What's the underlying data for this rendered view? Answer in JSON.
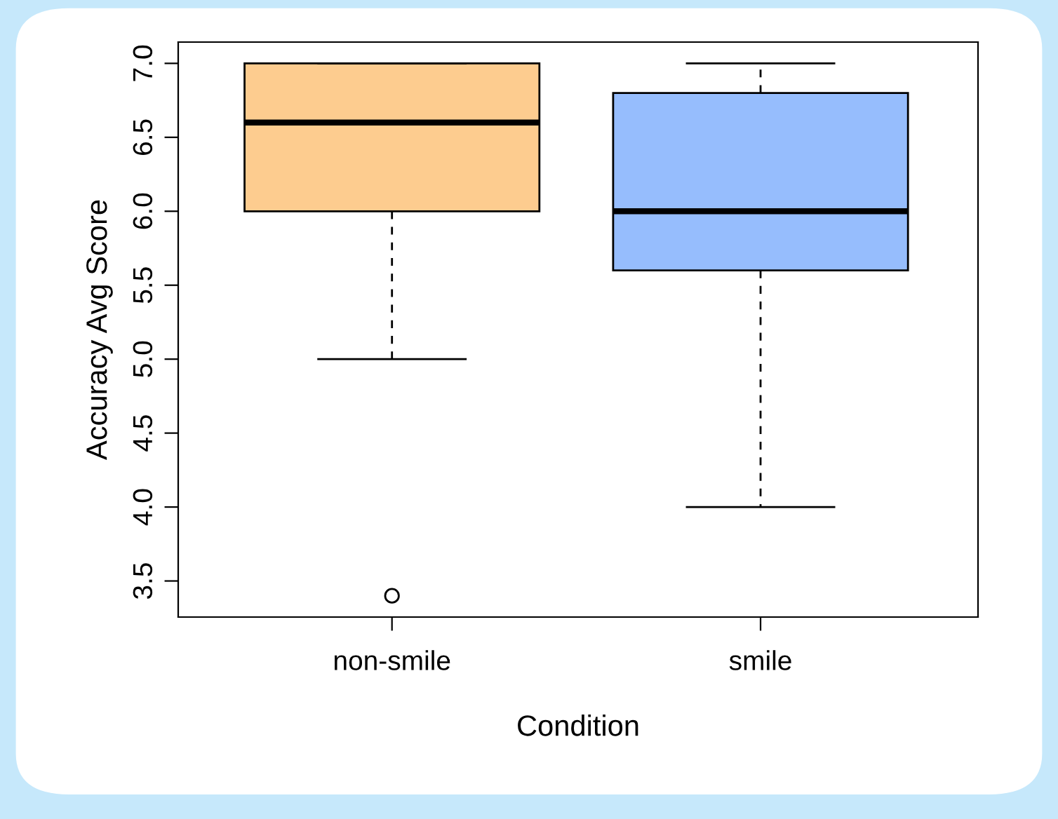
{
  "chart_data": {
    "type": "box",
    "xlabel": "Condition",
    "ylabel": "Accuracy Avg Score",
    "categories": [
      "non-smile",
      "smile"
    ],
    "colors": [
      "#fdcc8f",
      "#96bdfd"
    ],
    "boxes": [
      {
        "low": 5.0,
        "q1": 6.0,
        "median": 6.6,
        "q3": 7.0,
        "high": 7.0,
        "outliers": [
          3.4
        ]
      },
      {
        "low": 4.0,
        "q1": 5.6,
        "median": 6.0,
        "q3": 6.8,
        "high": 7.0
      }
    ],
    "ylim": [
      3.256,
      7.144
    ],
    "yticks": [
      3.5,
      {
        "value": 4,
        "label": "4.0"
      },
      4.5,
      {
        "value": 5,
        "label": "5.0"
      },
      5.5,
      {
        "value": 6,
        "label": "6.0"
      },
      6.5,
      {
        "value": 7,
        "label": "7.0"
      }
    ],
    "grid": false,
    "legend": false
  }
}
